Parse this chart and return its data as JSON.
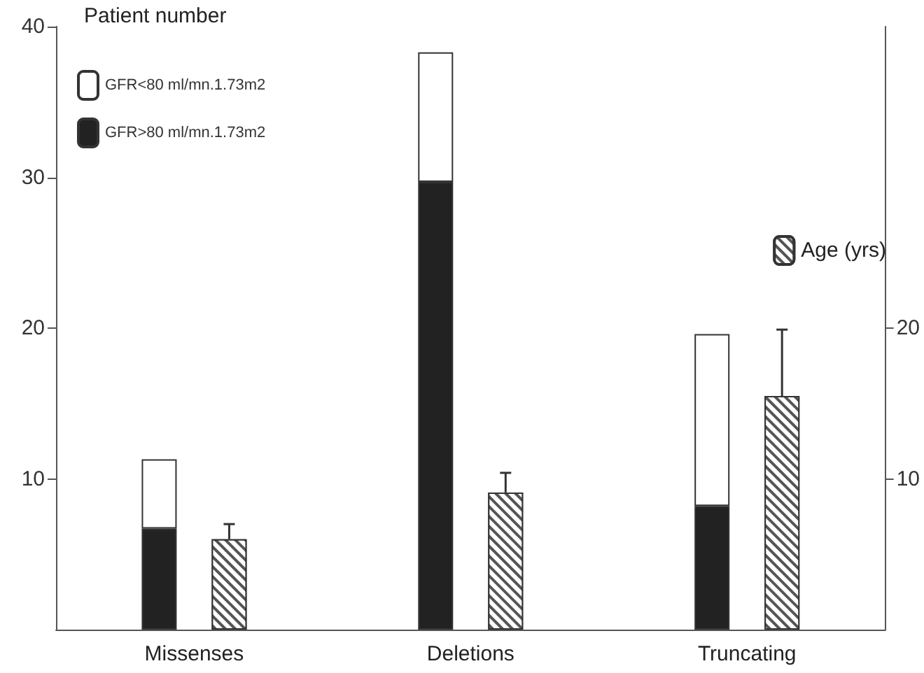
{
  "chart_data": {
    "type": "bar",
    "ylabel": "Patient number",
    "categories": [
      "Missenses",
      "Deletions",
      "Truncating"
    ],
    "stacked": true,
    "series": [
      {
        "name": "GFR>80 ml/mn.1.73m2",
        "color": "#222222",
        "values": [
          6.7,
          29.7,
          8.2
        ]
      },
      {
        "name": "GFR<80 ml/mn.1.73m2",
        "color": "#ffffff",
        "values": [
          4.6,
          8.6,
          11.4
        ]
      },
      {
        "name": "Age (yrs)",
        "color": "#555555",
        "axis": "y2",
        "values": [
          6.0,
          9.1,
          15.5
        ],
        "errors": [
          [
            6.0,
            7.0
          ],
          [
            9.1,
            10.4
          ],
          [
            15.5,
            19.9
          ]
        ]
      }
    ],
    "ylim": [
      0,
      40
    ],
    "yticks": [
      10,
      20,
      30,
      40
    ],
    "y2lim": [
      0,
      40
    ],
    "y2ticks": [
      10,
      20
    ],
    "legend": "top left",
    "grid": false
  }
}
